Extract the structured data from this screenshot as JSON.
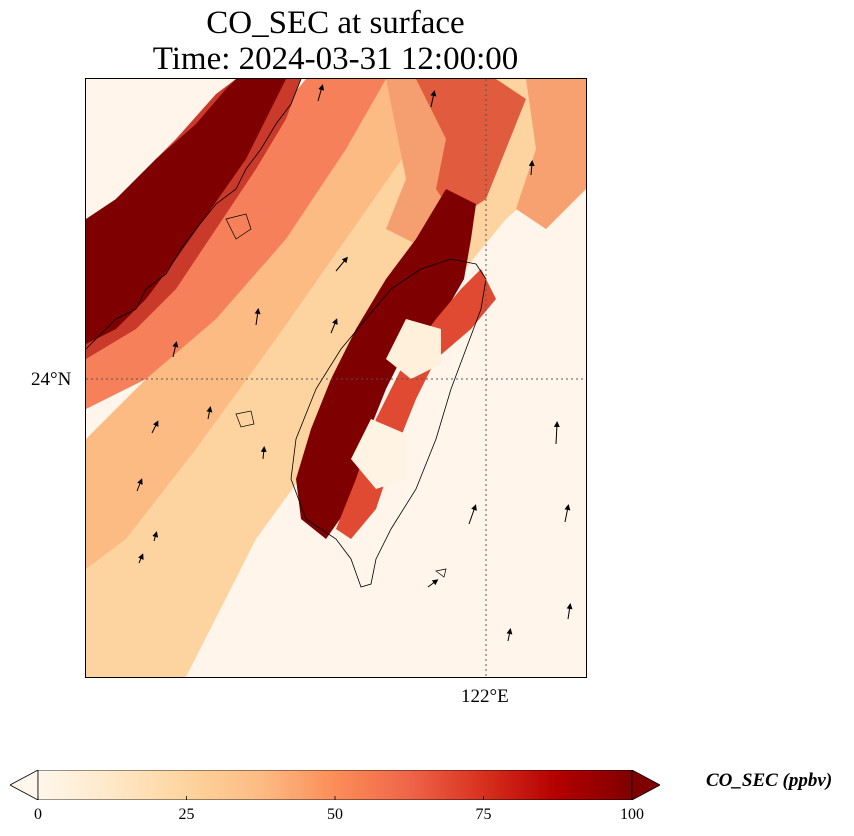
{
  "title": {
    "line1": "CO_SEC at surface",
    "line2": "Time: 2024-03-31 12:00:00"
  },
  "map": {
    "latitude_gridline_label": "24°N",
    "longitude_gridline_label": "122°E",
    "coastline_color": "#000000",
    "gridline_color": "#555555"
  },
  "colorbar": {
    "label": "CO_SEC (ppbv)",
    "cmap": "OrRd",
    "vmin": 0,
    "vmax": 100,
    "ticks": [
      "0",
      "25",
      "50",
      "75",
      "100"
    ],
    "colors": [
      "#fff7ec",
      "#fee8c8",
      "#fdd49e",
      "#fdbb84",
      "#fc8d59",
      "#ef6548",
      "#d7301f",
      "#b30000",
      "#7f0000"
    ],
    "extend": "both"
  }
}
